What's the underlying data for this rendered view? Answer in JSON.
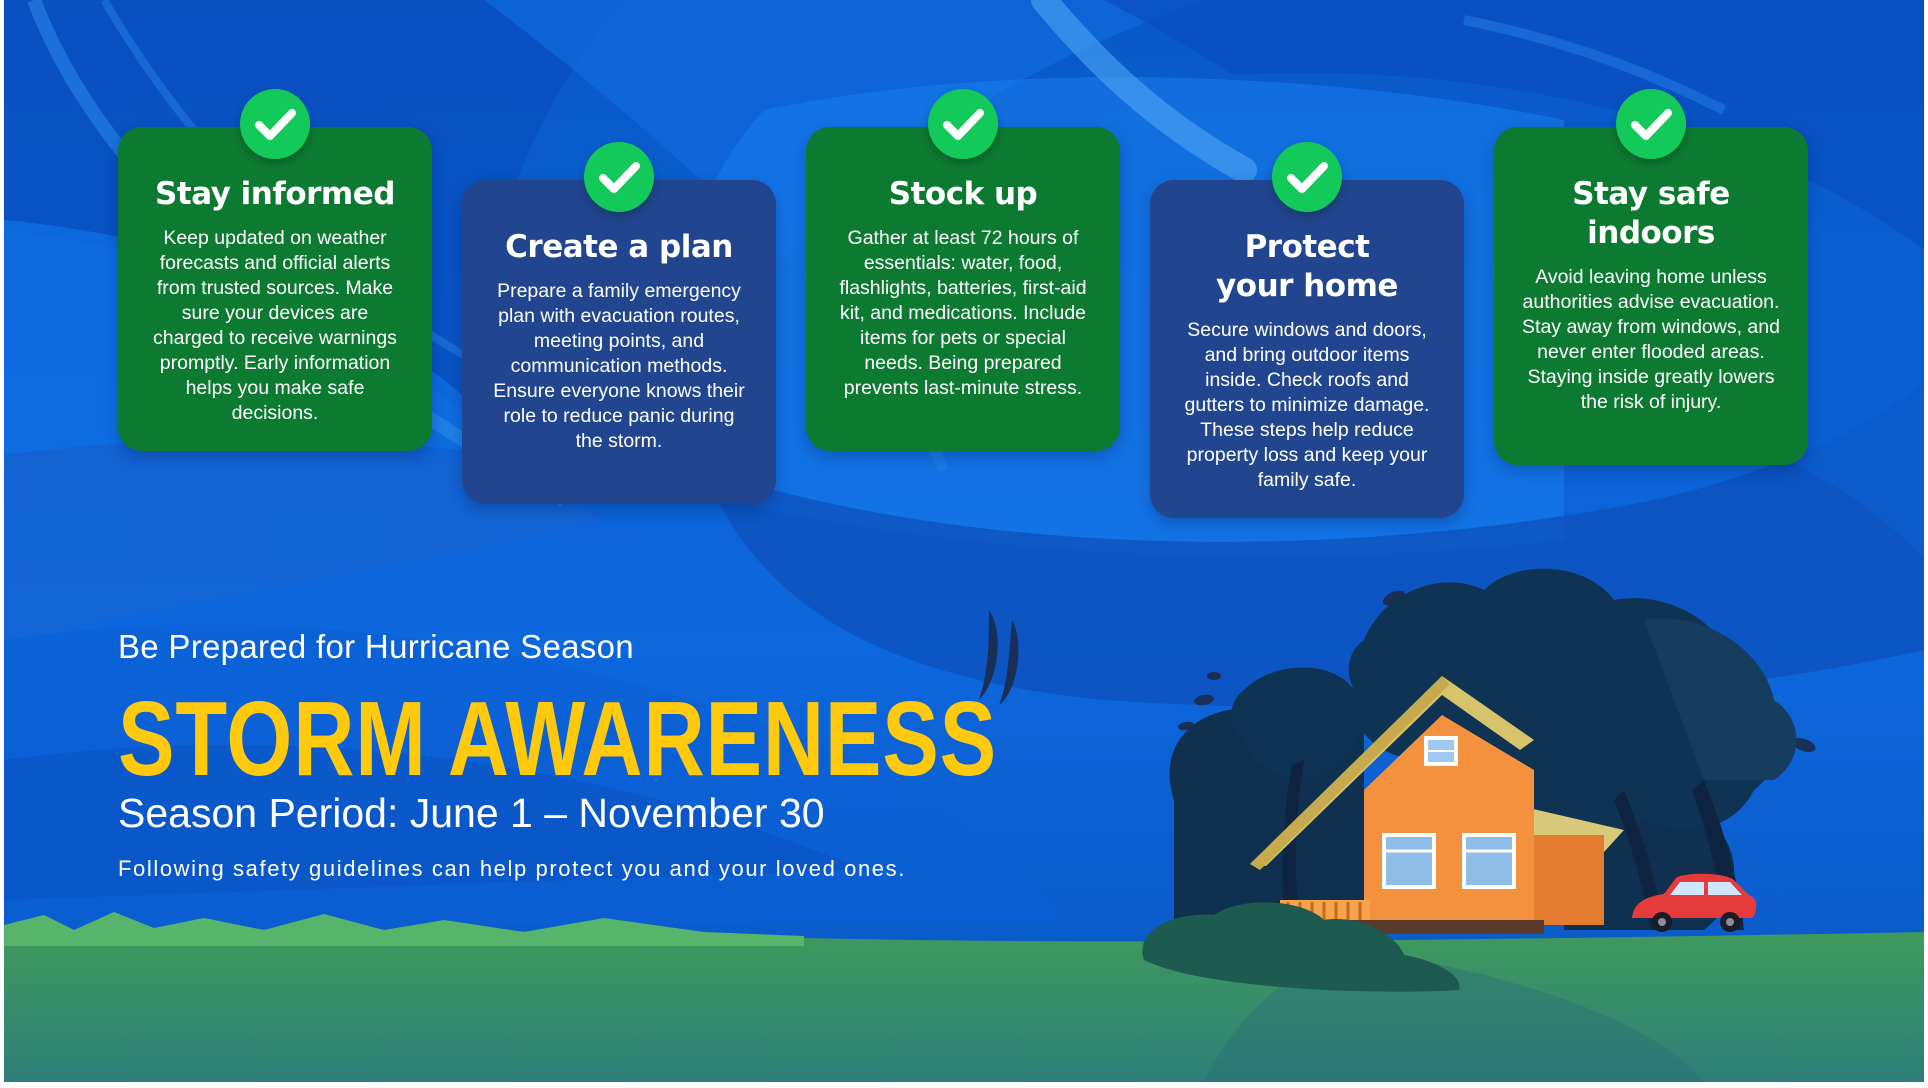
{
  "colors": {
    "sky": "#0f66d8",
    "card_green": "#0d7a31",
    "card_navy": "#21468f",
    "check_green": "#12c95a",
    "headline_yellow": "#ffc90e",
    "grass": "#3f9a5c",
    "house_orange": "#f4913e",
    "car_red": "#e63b3b"
  },
  "cards": [
    {
      "title": "Stay informed",
      "body": "Keep updated on weather forecasts and official alerts from trusted sources. Make sure your devices are charged to receive warnings promptly. Early information helps you make safe decisions.",
      "icon": "checkmark-icon"
    },
    {
      "title": "Create a plan",
      "body": "Prepare a family emergency plan with evacuation routes, meeting points, and communication methods. Ensure everyone knows their role to reduce panic during the storm.",
      "icon": "checkmark-icon"
    },
    {
      "title": "Stock up",
      "body": "Gather at least 72 hours of essentials: water, food, flashlights, batteries, first-aid kit, and medications. Include items for pets or special needs. Being prepared prevents last-minute stress.",
      "icon": "checkmark-icon"
    },
    {
      "title": "Protect\nyour home",
      "body": "Secure windows and doors, and bring outdoor items inside. Check roofs and gutters to minimize damage. These steps help reduce property loss and keep your family safe.",
      "icon": "checkmark-icon"
    },
    {
      "title": "Stay safe\nindoors",
      "body": "Avoid leaving home unless authorities advise evacuation. Stay away from windows, and never enter flooded areas. Staying inside greatly lowers the risk of injury.",
      "icon": "checkmark-icon"
    }
  ],
  "hero": {
    "pre_title": "Be Prepared for Hurricane Season",
    "headline": "STORM AWARENESS",
    "season": "Season Period: June 1 – November 30",
    "tagline": "Following safety guidelines can help protect you and your loved ones."
  },
  "illustration": {
    "icon": "house-in-storm-illustration"
  }
}
